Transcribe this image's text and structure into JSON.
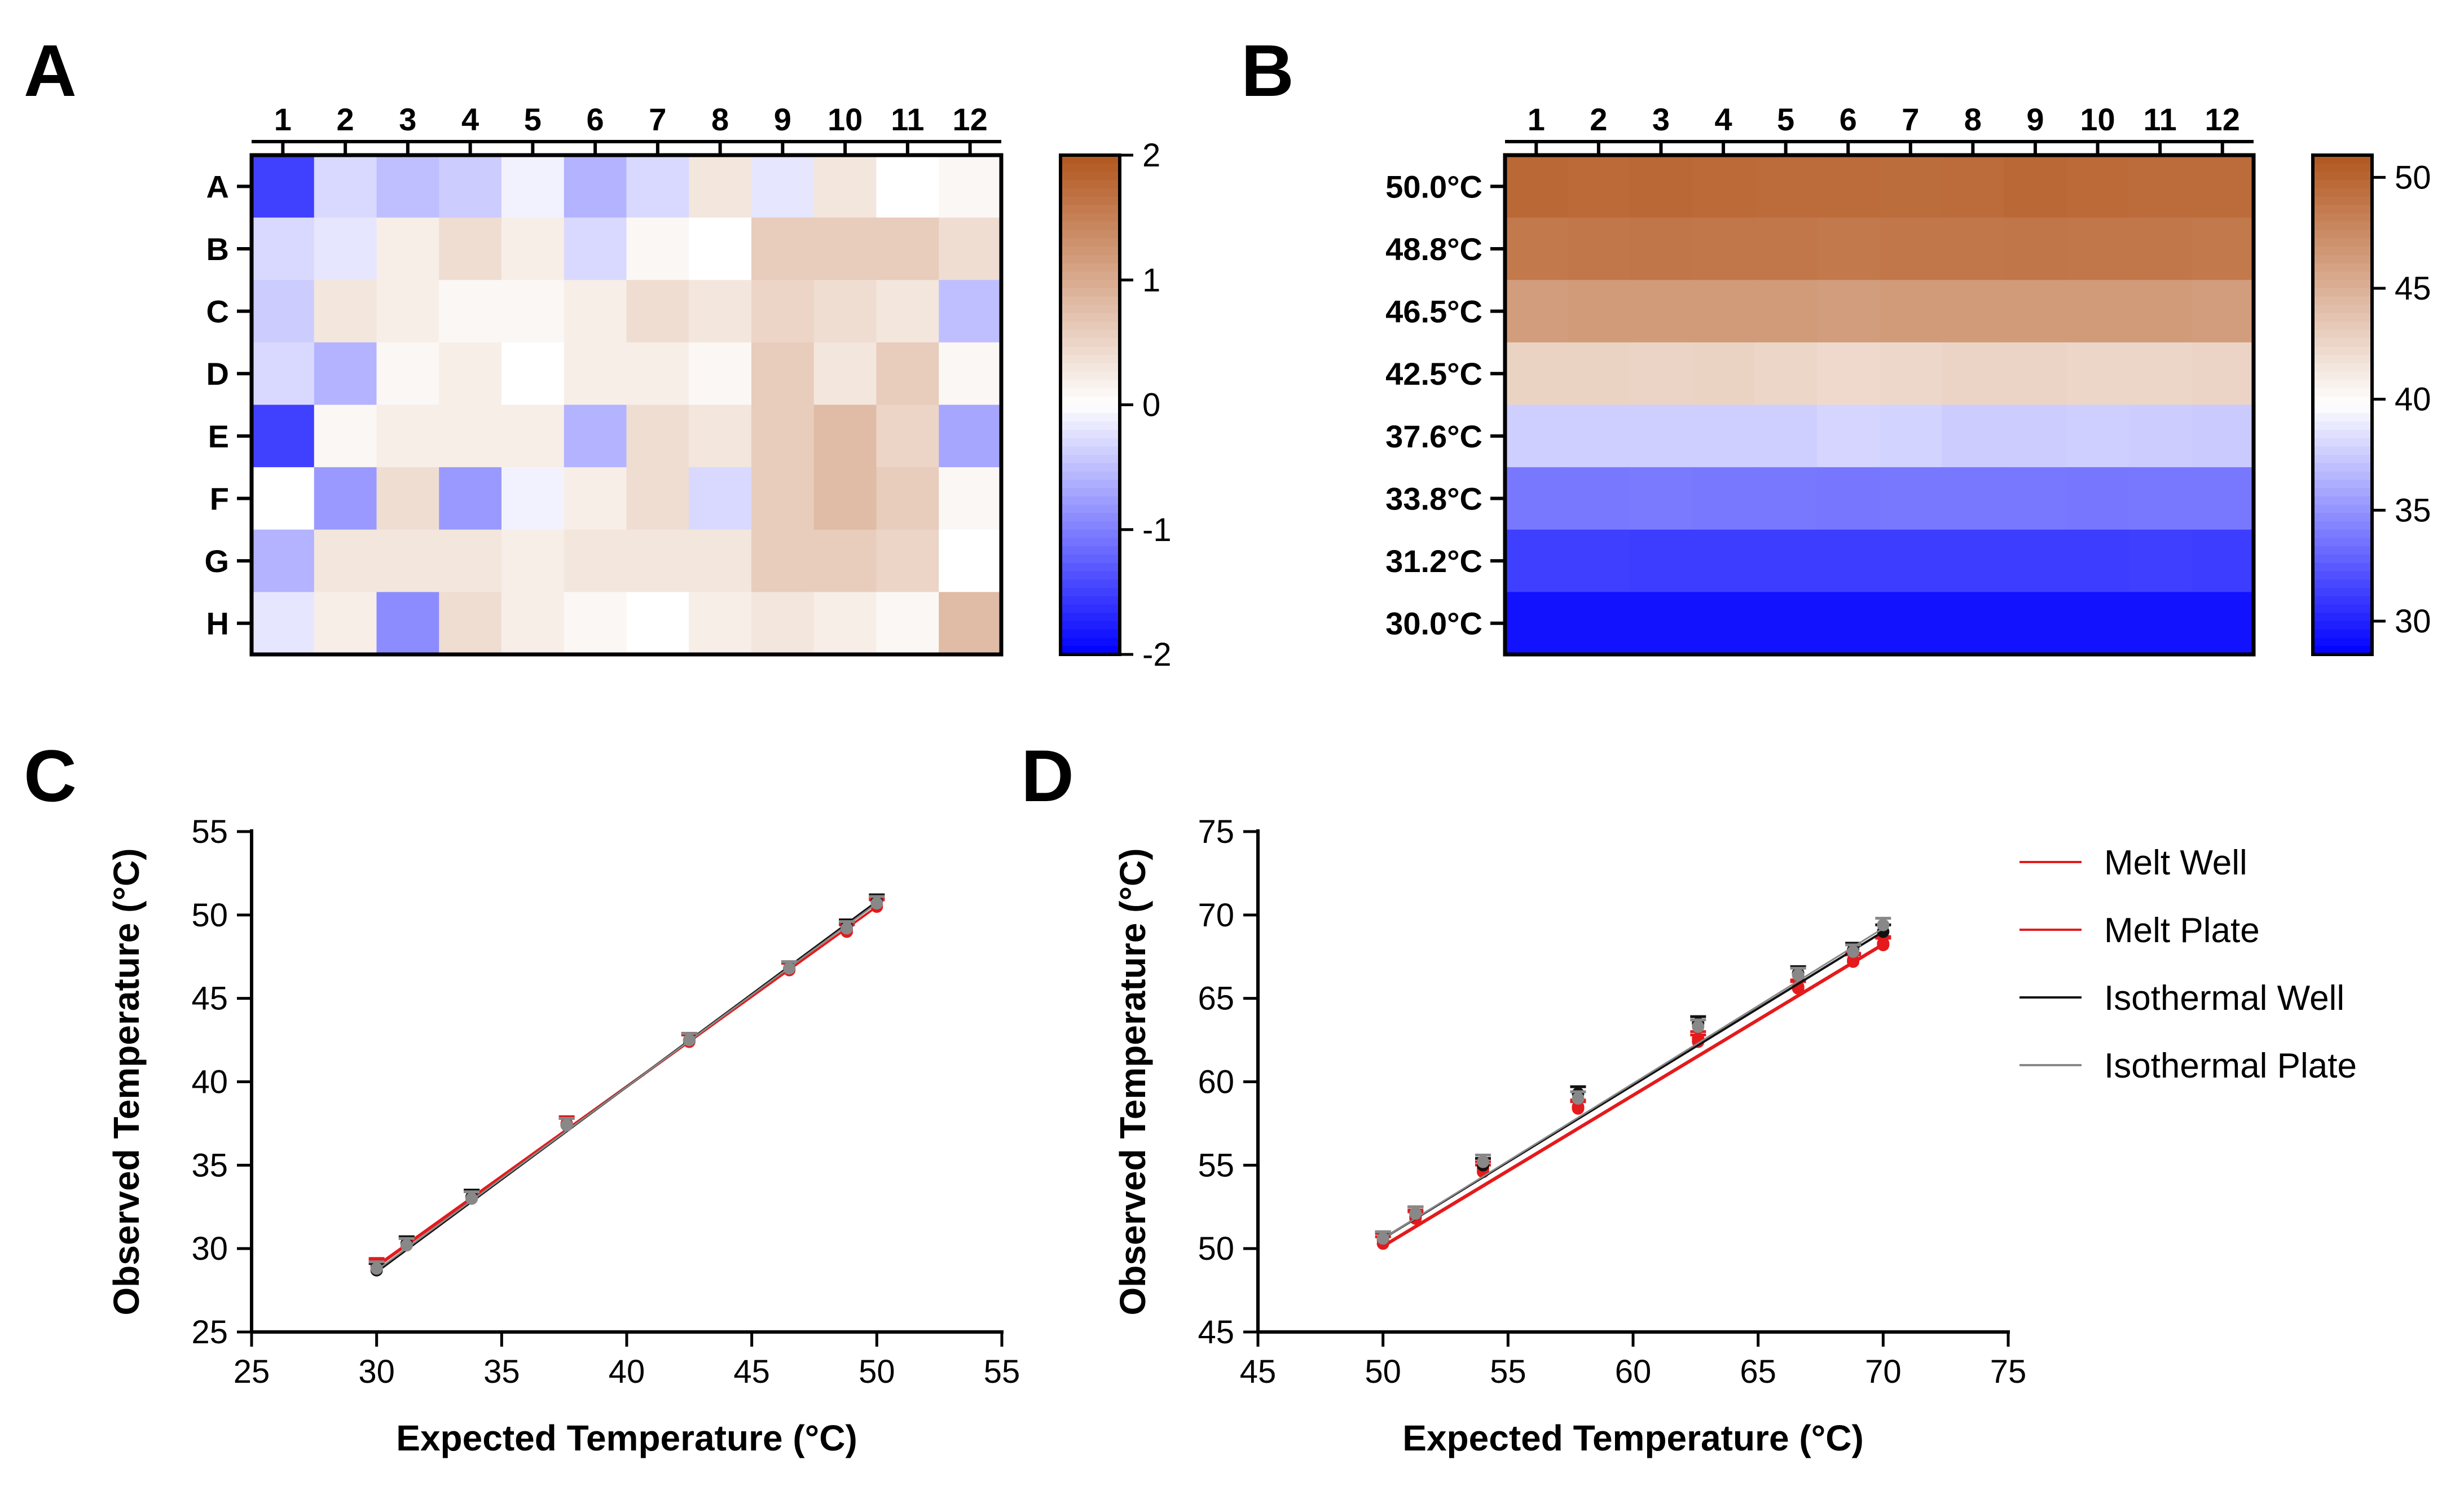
{
  "chart_data": [
    {
      "panel": "A",
      "type": "heatmap",
      "columns": [
        "1",
        "2",
        "3",
        "4",
        "5",
        "6",
        "7",
        "8",
        "9",
        "10",
        "11",
        "12"
      ],
      "rows": [
        "A",
        "B",
        "C",
        "D",
        "E",
        "F",
        "G",
        "H"
      ],
      "values": [
        [
          -1.5,
          -0.3,
          -0.5,
          -0.4,
          -0.1,
          -0.6,
          -0.3,
          0.3,
          -0.2,
          0.3,
          0.0,
          0.1
        ],
        [
          -0.3,
          -0.2,
          0.2,
          0.4,
          0.2,
          -0.3,
          0.1,
          0.0,
          0.6,
          0.6,
          0.6,
          0.4
        ],
        [
          -0.4,
          0.3,
          0.2,
          0.1,
          0.1,
          0.2,
          0.4,
          0.3,
          0.5,
          0.4,
          0.3,
          -0.5
        ],
        [
          -0.3,
          -0.6,
          0.1,
          0.2,
          0.0,
          0.2,
          0.2,
          0.1,
          0.6,
          0.3,
          0.6,
          0.1
        ],
        [
          -1.5,
          0.1,
          0.2,
          0.2,
          0.2,
          -0.6,
          0.4,
          0.3,
          0.6,
          0.8,
          0.5,
          -0.7
        ],
        [
          0.0,
          -0.8,
          0.4,
          -0.8,
          -0.1,
          0.2,
          0.4,
          -0.3,
          0.6,
          0.8,
          0.6,
          0.1
        ],
        [
          -0.6,
          0.3,
          0.3,
          0.3,
          0.2,
          0.3,
          0.3,
          0.3,
          0.6,
          0.6,
          0.5,
          0.0
        ],
        [
          -0.2,
          0.2,
          -0.9,
          0.4,
          0.2,
          0.1,
          0.0,
          0.2,
          0.3,
          0.2,
          0.1,
          0.8
        ]
      ],
      "colorbar": {
        "ticks": [
          "2",
          "1",
          "0",
          "-1",
          "-2"
        ],
        "range": [
          -2,
          2
        ]
      }
    },
    {
      "panel": "B",
      "type": "heatmap",
      "columns": [
        "1",
        "2",
        "3",
        "4",
        "5",
        "6",
        "7",
        "8",
        "9",
        "10",
        "11",
        "12"
      ],
      "rows": [
        "50.0°C",
        "48.8°C",
        "46.5°C",
        "42.5°C",
        "37.6°C",
        "33.8°C",
        "31.2°C",
        "30.0°C"
      ],
      "values": [
        [
          49.8,
          49.7,
          49.8,
          49.7,
          49.6,
          49.6,
          49.5,
          49.6,
          49.8,
          49.7,
          49.6,
          49.6
        ],
        [
          48.7,
          48.8,
          48.9,
          48.8,
          48.8,
          48.7,
          48.8,
          48.8,
          48.9,
          48.8,
          48.8,
          48.7
        ],
        [
          46.3,
          46.4,
          46.5,
          46.5,
          46.5,
          46.3,
          46.4,
          46.4,
          46.5,
          46.4,
          46.4,
          46.3
        ],
        [
          42.7,
          42.7,
          42.6,
          42.7,
          42.5,
          42.3,
          42.4,
          42.6,
          42.6,
          42.5,
          42.5,
          42.6
        ],
        [
          37.6,
          37.6,
          37.6,
          37.6,
          37.6,
          37.9,
          37.8,
          37.5,
          37.5,
          37.6,
          37.5,
          37.4
        ],
        [
          33.8,
          33.8,
          33.9,
          33.8,
          33.8,
          33.7,
          33.8,
          33.8,
          33.8,
          33.7,
          33.8,
          33.8
        ],
        [
          31.3,
          31.3,
          31.2,
          31.2,
          31.2,
          31.2,
          31.2,
          31.2,
          31.2,
          31.2,
          31.3,
          31.2
        ],
        [
          29.3,
          29.3,
          29.3,
          29.3,
          29.3,
          29.3,
          29.3,
          29.3,
          29.3,
          29.3,
          29.3,
          29.3
        ]
      ],
      "colorbar": {
        "ticks": [
          "50",
          "45",
          "40",
          "35",
          "30"
        ],
        "range": [
          28.5,
          51
        ]
      }
    },
    {
      "panel": "C",
      "type": "scatter",
      "xlabel": "Expected Temperature (°C)",
      "ylabel": "Observed Temperature (°C)",
      "xlim": [
        25,
        55
      ],
      "ylim": [
        25,
        55
      ],
      "xticks": [
        "25",
        "30",
        "35",
        "40",
        "45",
        "50",
        "55"
      ],
      "yticks": [
        "25",
        "30",
        "35",
        "40",
        "45",
        "50",
        "55"
      ],
      "series": [
        {
          "name": "Melt Well",
          "color": "#e41a1c",
          "x": [
            30.0,
            31.2,
            33.8,
            37.6,
            42.5,
            46.5,
            48.8,
            50.0
          ],
          "y": [
            28.9,
            30.3,
            33.1,
            37.4,
            42.4,
            46.7,
            49.1,
            50.6
          ],
          "fit": [
            [
              30.0,
              28.9
            ],
            [
              50.0,
              50.5
            ]
          ]
        },
        {
          "name": "Melt Plate",
          "color": "#e41a1c",
          "x": [
            30.0,
            31.2,
            33.8,
            37.6,
            42.5,
            46.5,
            48.8,
            50.0
          ],
          "y": [
            29.0,
            30.2,
            33.0,
            37.5,
            42.5,
            46.7,
            49.0,
            50.5
          ],
          "fit": [
            [
              30.0,
              29.0
            ],
            [
              50.0,
              50.5
            ]
          ]
        },
        {
          "name": "Isothermal Well",
          "color": "#111111",
          "x": [
            30.0,
            31.2,
            33.8,
            37.6,
            42.5,
            46.5,
            48.8,
            50.0
          ],
          "y": [
            28.7,
            30.3,
            33.1,
            37.4,
            42.5,
            46.8,
            49.3,
            50.8
          ],
          "fit": [
            [
              30.0,
              28.6
            ],
            [
              50.0,
              50.8
            ]
          ]
        },
        {
          "name": "Isothermal Plate",
          "color": "#888888",
          "x": [
            30.0,
            31.2,
            33.8,
            37.6,
            42.5,
            46.5,
            48.8,
            50.0
          ],
          "y": [
            28.8,
            30.2,
            33.0,
            37.4,
            42.5,
            46.8,
            49.2,
            50.7
          ],
          "fit": [
            [
              30.0,
              28.7
            ],
            [
              50.0,
              50.7
            ]
          ]
        }
      ]
    },
    {
      "panel": "D",
      "type": "scatter",
      "xlabel": "Expected Temperature (°C)",
      "ylabel": "Observed Temperature (°C)",
      "xlim": [
        45,
        75
      ],
      "ylim": [
        45,
        75
      ],
      "xticks": [
        "45",
        "50",
        "55",
        "60",
        "65",
        "70",
        "75"
      ],
      "yticks": [
        "45",
        "50",
        "55",
        "60",
        "65",
        "70",
        "75"
      ],
      "series": [
        {
          "name": "Melt Well",
          "color": "#e41a1c",
          "x": [
            50.0,
            51.3,
            54.0,
            57.8,
            62.6,
            66.6,
            68.8,
            70.0
          ],
          "y": [
            50.3,
            51.8,
            54.6,
            58.4,
            62.4,
            65.6,
            67.2,
            68.2
          ],
          "fit": [
            [
              50.0,
              50.1
            ],
            [
              70.0,
              68.2
            ]
          ]
        },
        {
          "name": "Melt Plate",
          "color": "#e41a1c",
          "x": [
            50.0,
            51.3,
            54.0,
            57.8,
            62.6,
            66.6,
            68.8,
            70.0
          ],
          "y": [
            50.5,
            51.9,
            54.8,
            58.5,
            62.6,
            65.7,
            67.3,
            68.3
          ],
          "fit": [
            [
              50.0,
              50.2
            ],
            [
              70.0,
              68.3
            ]
          ]
        },
        {
          "name": "Isothermal Well",
          "color": "#111111",
          "x": [
            50.0,
            51.3,
            54.0,
            57.8,
            62.6,
            66.6,
            68.8,
            70.0
          ],
          "y": [
            50.6,
            52.1,
            55.0,
            59.3,
            63.5,
            66.5,
            67.9,
            69.0
          ],
          "fit": [
            [
              50.0,
              50.6
            ],
            [
              70.0,
              69.0
            ]
          ]
        },
        {
          "name": "Isothermal Plate",
          "color": "#888888",
          "x": [
            50.0,
            51.3,
            54.0,
            57.8,
            62.6,
            66.6,
            68.8,
            70.0
          ],
          "y": [
            50.6,
            52.1,
            55.2,
            59.0,
            63.3,
            66.4,
            67.8,
            69.4
          ],
          "fit": [
            [
              50.0,
              50.6
            ],
            [
              70.0,
              69.2
            ]
          ]
        }
      ]
    }
  ],
  "panel_labels": [
    "A",
    "B",
    "C",
    "D"
  ],
  "legend": [
    "Melt Well",
    "Melt Plate",
    "Isothermal Well",
    "Isothermal Plate"
  ]
}
